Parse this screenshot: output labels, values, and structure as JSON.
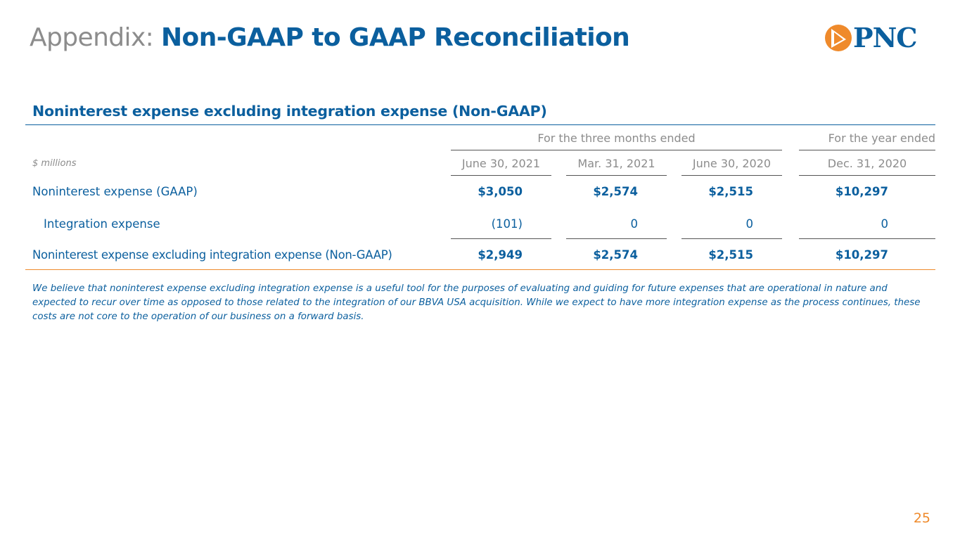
{
  "slide": {
    "title_prefix": "Appendix: ",
    "title_main": "Non-GAAP to GAAP Reconciliation",
    "logo_text": "PNC",
    "section_title": "Noninterest expense excluding integration expense (Non-GAAP)",
    "page_number": "25",
    "colors": {
      "brand_blue": "#0b5f9e",
      "accent_orange": "#ef8a2b",
      "gray_text": "#8c8c8c"
    }
  },
  "table": {
    "units": "$ millions",
    "group_headers": {
      "three_months": "For the three months ended",
      "year": "For the year ended"
    },
    "columns": [
      "June 30, 2021",
      "Mar. 31, 2021",
      "June 30, 2020",
      "Dec. 31, 2020"
    ],
    "rows": [
      {
        "label": "Noninterest expense (GAAP)",
        "values": [
          "$3,050",
          "$2,574",
          "$2,515",
          "$10,297"
        ]
      },
      {
        "label": "Integration expense",
        "values": [
          "(101)",
          "0",
          "0",
          "0"
        ]
      },
      {
        "label": "Noninterest expense excluding integration expense (Non-GAAP)",
        "values": [
          "$2,949",
          "$2,574",
          "$2,515",
          "$10,297"
        ]
      }
    ]
  },
  "footnote": "We believe that noninterest expense excluding integration expense is a useful tool for the purposes of evaluating and guiding for future expenses that are operational in nature and expected to recur over time as opposed to those related to the integration of our BBVA USA acquisition. While we expect to have more integration expense as the process continues, these costs are not core to the operation of our business on a forward basis."
}
